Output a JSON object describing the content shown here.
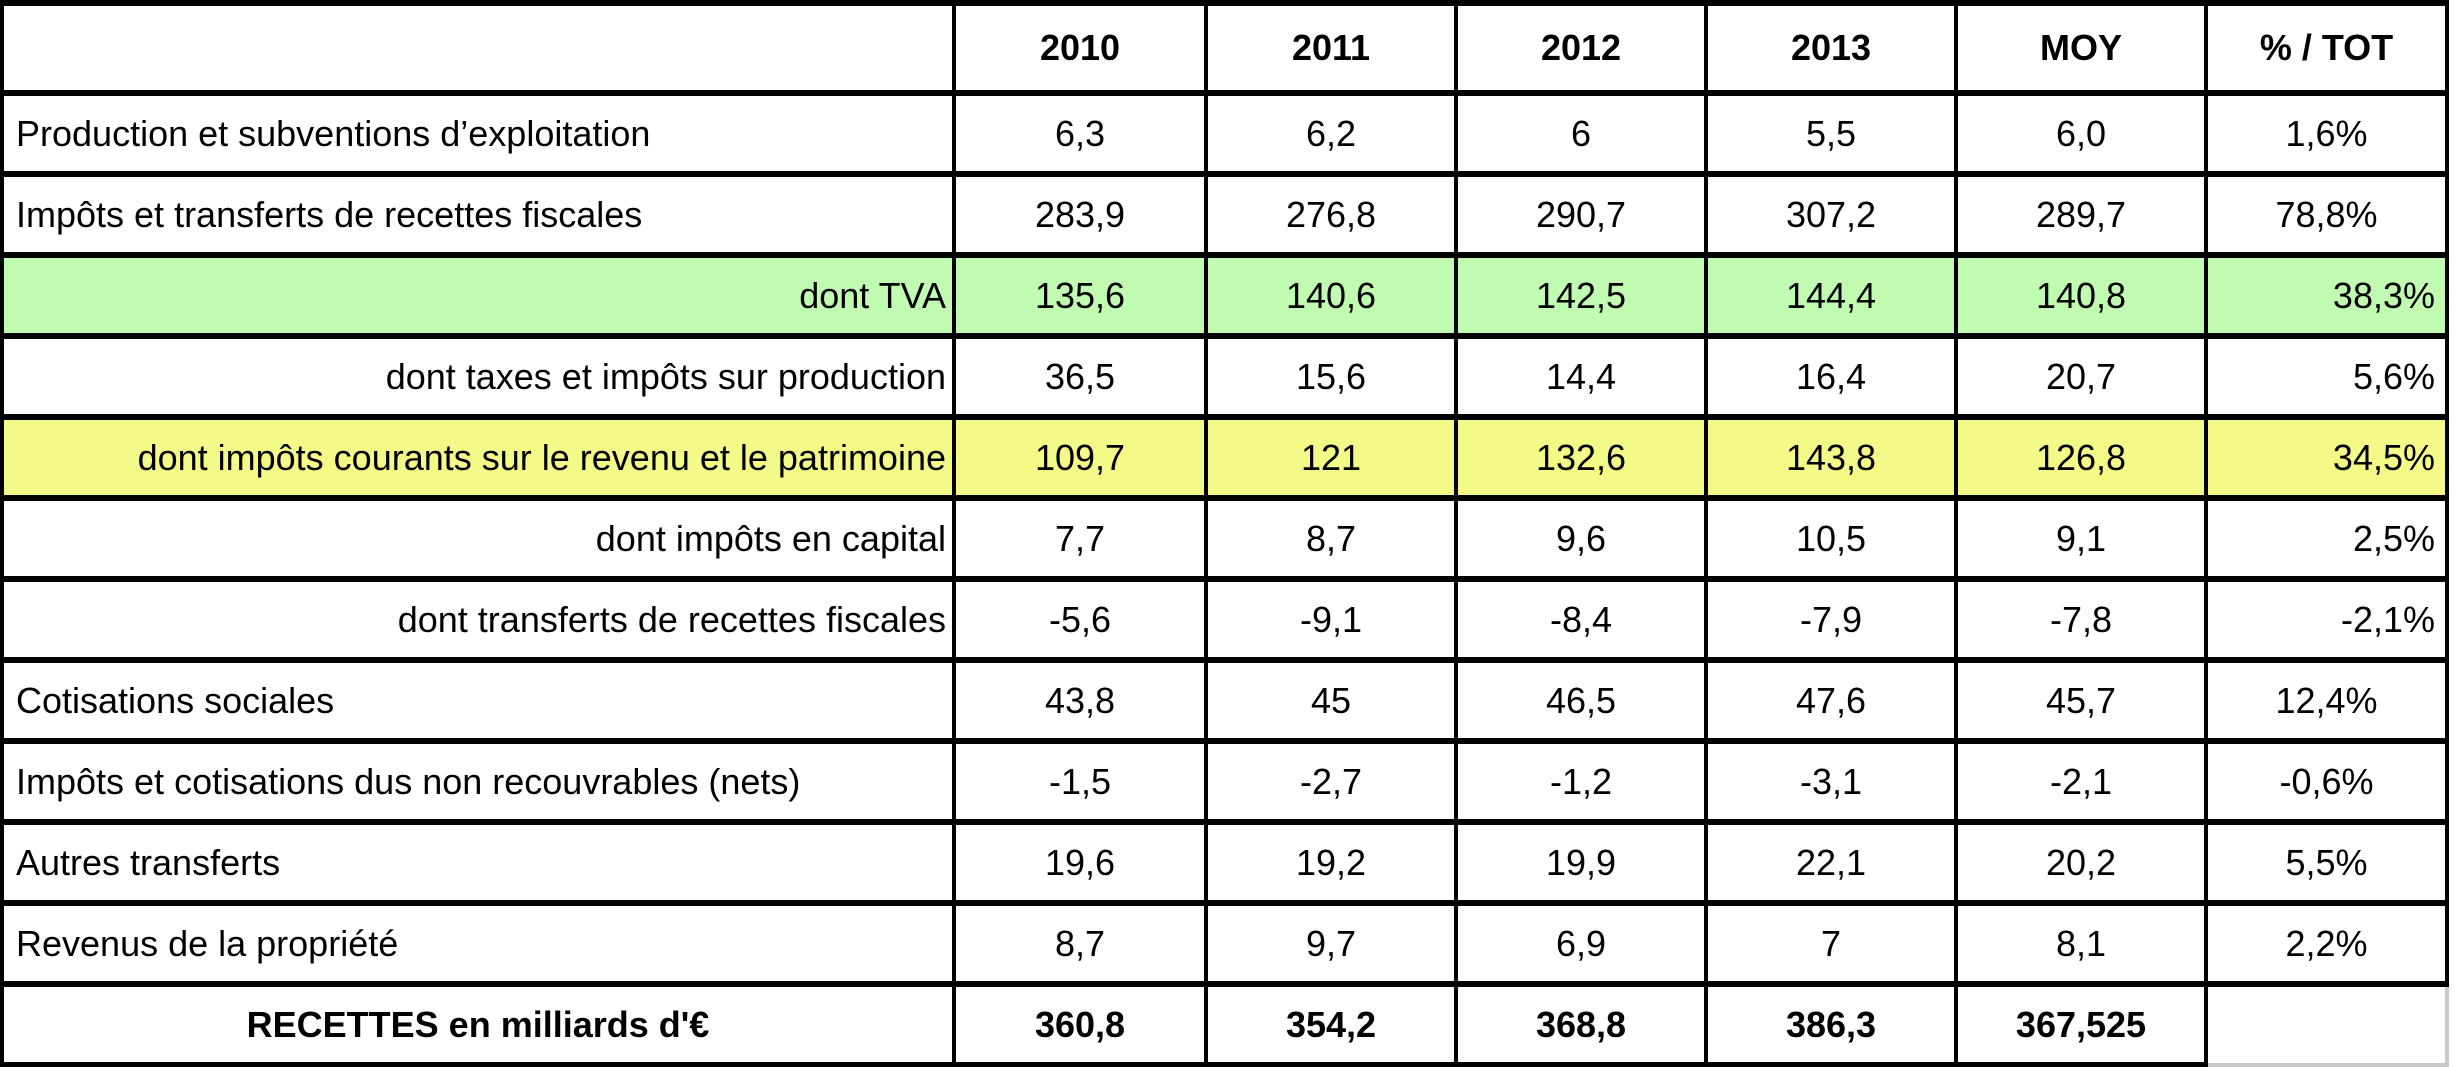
{
  "table": {
    "columns": [
      "",
      "2010",
      "2011",
      "2012",
      "2013",
      "MOY",
      "% / TOT"
    ],
    "rows": [
      {
        "label": "Production et subventions d’exploitation",
        "values": [
          "6,3",
          "6,2",
          "6",
          "5,5",
          "6,0"
        ],
        "pct": "1,6%",
        "highlight": "none",
        "label_align": "left",
        "pct_align": "center",
        "bold": false,
        "ghost_pct": false
      },
      {
        "label": "Impôts et transferts de recettes fiscales",
        "values": [
          "283,9",
          "276,8",
          "290,7",
          "307,2",
          "289,7"
        ],
        "pct": "78,8%",
        "highlight": "none",
        "label_align": "left",
        "pct_align": "center",
        "bold": false,
        "ghost_pct": false
      },
      {
        "label": "dont TVA",
        "values": [
          "135,6",
          "140,6",
          "142,5",
          "144,4",
          "140,8"
        ],
        "pct": "38,3%",
        "highlight": "green",
        "label_align": "right",
        "pct_align": "right",
        "bold": false,
        "ghost_pct": false
      },
      {
        "label": "dont taxes et impôts sur production",
        "values": [
          "36,5",
          "15,6",
          "14,4",
          "16,4",
          "20,7"
        ],
        "pct": "5,6%",
        "highlight": "none",
        "label_align": "right",
        "pct_align": "right",
        "bold": false,
        "ghost_pct": false
      },
      {
        "label": "dont impôts courants sur le revenu et le patrimoine",
        "values": [
          "109,7",
          "121",
          "132,6",
          "143,8",
          "126,8"
        ],
        "pct": "34,5%",
        "highlight": "yellow",
        "label_align": "right",
        "pct_align": "right",
        "bold": false,
        "ghost_pct": false
      },
      {
        "label": "dont impôts en capital",
        "values": [
          "7,7",
          "8,7",
          "9,6",
          "10,5",
          "9,1"
        ],
        "pct": "2,5%",
        "highlight": "none",
        "label_align": "right",
        "pct_align": "right",
        "bold": false,
        "ghost_pct": false
      },
      {
        "label": "dont transferts de recettes fiscales",
        "values": [
          "-5,6",
          "-9,1",
          "-8,4",
          "-7,9",
          "-7,8"
        ],
        "pct": "-2,1%",
        "highlight": "none",
        "label_align": "right",
        "pct_align": "right",
        "bold": false,
        "ghost_pct": false
      },
      {
        "label": "Cotisations sociales",
        "values": [
          "43,8",
          "45",
          "46,5",
          "47,6",
          "45,7"
        ],
        "pct": "12,4%",
        "highlight": "none",
        "label_align": "left",
        "pct_align": "center",
        "bold": false,
        "ghost_pct": false
      },
      {
        "label": "Impôts et cotisations dus non recouvrables (nets)",
        "values": [
          "-1,5",
          "-2,7",
          "-1,2",
          "-3,1",
          "-2,1"
        ],
        "pct": "-0,6%",
        "highlight": "none",
        "label_align": "left",
        "pct_align": "center",
        "bold": false,
        "ghost_pct": false
      },
      {
        "label": "Autres transferts",
        "values": [
          "19,6",
          "19,2",
          "19,9",
          "22,1",
          "20,2"
        ],
        "pct": "5,5%",
        "highlight": "none",
        "label_align": "left",
        "pct_align": "center",
        "bold": false,
        "ghost_pct": false
      },
      {
        "label": "Revenus de la propriété",
        "values": [
          "8,7",
          "9,7",
          "6,9",
          "7",
          "8,1"
        ],
        "pct": "2,2%",
        "highlight": "none",
        "label_align": "left",
        "pct_align": "center",
        "bold": false,
        "ghost_pct": false
      },
      {
        "label": "RECETTES en milliards d'€",
        "values": [
          "360,8",
          "354,2",
          "368,8",
          "386,3",
          "367,525"
        ],
        "pct": "",
        "highlight": "none",
        "label_align": "center",
        "pct_align": "center",
        "bold": true,
        "ghost_pct": true
      }
    ]
  },
  "colors": {
    "green_highlight": "#c1fbb1",
    "yellow_highlight": "#f3fa87",
    "border": "#000000",
    "ghost_border": "#c9c9c9",
    "text": "#000000",
    "background": "#ffffff"
  },
  "chart_data": {
    "type": "table",
    "title": "RECETTES en milliards d'€",
    "columns": [
      "",
      "2010",
      "2011",
      "2012",
      "2013",
      "MOY",
      "% / TOT"
    ],
    "units": "milliards d'€",
    "rows": [
      {
        "label": "Production et subventions d’exploitation",
        "2010": 6.3,
        "2011": 6.2,
        "2012": 6,
        "2013": 5.5,
        "MOY": 6.0,
        "pct_tot": 1.6
      },
      {
        "label": "Impôts et transferts de recettes fiscales",
        "2010": 283.9,
        "2011": 276.8,
        "2012": 290.7,
        "2013": 307.2,
        "MOY": 289.7,
        "pct_tot": 78.8
      },
      {
        "label": "dont TVA",
        "2010": 135.6,
        "2011": 140.6,
        "2012": 142.5,
        "2013": 144.4,
        "MOY": 140.8,
        "pct_tot": 38.3,
        "highlight": "green"
      },
      {
        "label": "dont taxes et impôts sur production",
        "2010": 36.5,
        "2011": 15.6,
        "2012": 14.4,
        "2013": 16.4,
        "MOY": 20.7,
        "pct_tot": 5.6
      },
      {
        "label": "dont impôts courants sur le revenu et le patrimoine",
        "2010": 109.7,
        "2011": 121,
        "2012": 132.6,
        "2013": 143.8,
        "MOY": 126.8,
        "pct_tot": 34.5,
        "highlight": "yellow"
      },
      {
        "label": "dont impôts en capital",
        "2010": 7.7,
        "2011": 8.7,
        "2012": 9.6,
        "2013": 10.5,
        "MOY": 9.1,
        "pct_tot": 2.5
      },
      {
        "label": "dont transferts de recettes fiscales",
        "2010": -5.6,
        "2011": -9.1,
        "2012": -8.4,
        "2013": -7.9,
        "MOY": -7.8,
        "pct_tot": -2.1
      },
      {
        "label": "Cotisations sociales",
        "2010": 43.8,
        "2011": 45,
        "2012": 46.5,
        "2013": 47.6,
        "MOY": 45.7,
        "pct_tot": 12.4
      },
      {
        "label": "Impôts et cotisations dus non recouvrables (nets)",
        "2010": -1.5,
        "2011": -2.7,
        "2012": -1.2,
        "2013": -3.1,
        "MOY": -2.1,
        "pct_tot": -0.6
      },
      {
        "label": "Autres transferts",
        "2010": 19.6,
        "2011": 19.2,
        "2012": 19.9,
        "2013": 22.1,
        "MOY": 20.2,
        "pct_tot": 5.5
      },
      {
        "label": "Revenus de la propriété",
        "2010": 8.7,
        "2011": 9.7,
        "2012": 6.9,
        "2013": 7,
        "MOY": 8.1,
        "pct_tot": 2.2
      },
      {
        "label": "RECETTES en milliards d'€",
        "2010": 360.8,
        "2011": 354.2,
        "2012": 368.8,
        "2013": 386.3,
        "MOY": 367.525,
        "pct_tot": null
      }
    ]
  }
}
